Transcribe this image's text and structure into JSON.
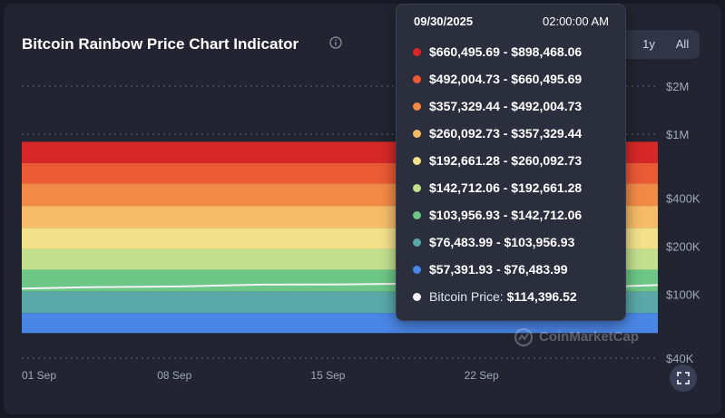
{
  "title": "Bitcoin Rainbow Price Chart Indicator",
  "icons": {
    "info": "info-circle-icon",
    "fullscreen": "expand-icon",
    "watermark": "coinmarketcap-logo"
  },
  "range_buttons": [
    {
      "label": "d",
      "partially_hidden": true
    },
    {
      "label": "1y"
    },
    {
      "label": "All"
    }
  ],
  "watermark": "CoinMarketCap",
  "tooltip": {
    "date": "09/30/2025",
    "time": "02:00:00 AM",
    "bands": [
      {
        "range": "$660,495.69 - $898,468.06",
        "color": "#d62828"
      },
      {
        "range": "$492,004.73 - $660,495.69",
        "color": "#ea5a34"
      },
      {
        "range": "$357,329.44 - $492,004.73",
        "color": "#f28a47"
      },
      {
        "range": "$260,092.73 - $357,329.44",
        "color": "#f5bb68"
      },
      {
        "range": "$192,661.28 - $260,092.73",
        "color": "#f2e08a"
      },
      {
        "range": "$142,712.06 - $192,661.28",
        "color": "#c3df8e"
      },
      {
        "range": "$103,956.93 - $142,712.06",
        "color": "#6dc686"
      },
      {
        "range": "$76,483.99 - $103,956.93",
        "color": "#5aa7a8"
      },
      {
        "range": "$57,391.93 - $76,483.99",
        "color": "#4a86e6"
      }
    ],
    "price_label": "Bitcoin Price:",
    "price_value": "$114,396.52",
    "price_color": "#f2f2f2"
  },
  "chart_data": {
    "type": "area",
    "title": "Bitcoin Rainbow Price Chart Indicator",
    "y_scale": "log",
    "ylim": [
      40000,
      2000000
    ],
    "y_ticks": [
      {
        "label": "$2M",
        "value": 2000000
      },
      {
        "label": "$1M",
        "value": 1000000
      },
      {
        "label": "$400K",
        "value": 400000
      },
      {
        "label": "$200K",
        "value": 200000
      },
      {
        "label": "$100K",
        "value": 100000
      },
      {
        "label": "$40K",
        "value": 40000
      }
    ],
    "x_ticks": [
      "01 Sep",
      "08 Sep",
      "15 Sep",
      "22 Sep"
    ],
    "x_range": [
      "2025-09-01",
      "2025-09-30"
    ],
    "grid": true,
    "bands": [
      {
        "lower": 660495.69,
        "upper": 898468.06,
        "color": "#d62828"
      },
      {
        "lower": 492004.73,
        "upper": 660495.69,
        "color": "#ea5a34"
      },
      {
        "lower": 357329.44,
        "upper": 492004.73,
        "color": "#f28a47"
      },
      {
        "lower": 260092.73,
        "upper": 357329.44,
        "color": "#f5bb68"
      },
      {
        "lower": 192661.28,
        "upper": 260092.73,
        "color": "#f2e08a"
      },
      {
        "lower": 142712.06,
        "upper": 192661.28,
        "color": "#c3df8e"
      },
      {
        "lower": 103956.93,
        "upper": 142712.06,
        "color": "#6dc686"
      },
      {
        "lower": 76483.99,
        "upper": 103956.93,
        "color": "#5aa7a8"
      },
      {
        "lower": 57391.93,
        "upper": 76483.99,
        "color": "#4a86e6"
      }
    ],
    "series": [
      {
        "values": [
          {
            "date": "2025-09-01",
            "y": 108900
          },
          {
            "date": "2025-09-04",
            "y": 111000
          },
          {
            "date": "2025-09-08",
            "y": 112100
          },
          {
            "date": "2025-09-12",
            "y": 115200
          },
          {
            "date": "2025-09-15",
            "y": 115300
          },
          {
            "date": "2025-09-18",
            "y": 116500
          },
          {
            "date": "2025-09-22",
            "y": 112600
          },
          {
            "date": "2025-09-26",
            "y": 109600
          },
          {
            "date": "2025-09-30",
            "y": 114396.52
          }
        ],
        "color": "#f2f2f2"
      }
    ]
  }
}
